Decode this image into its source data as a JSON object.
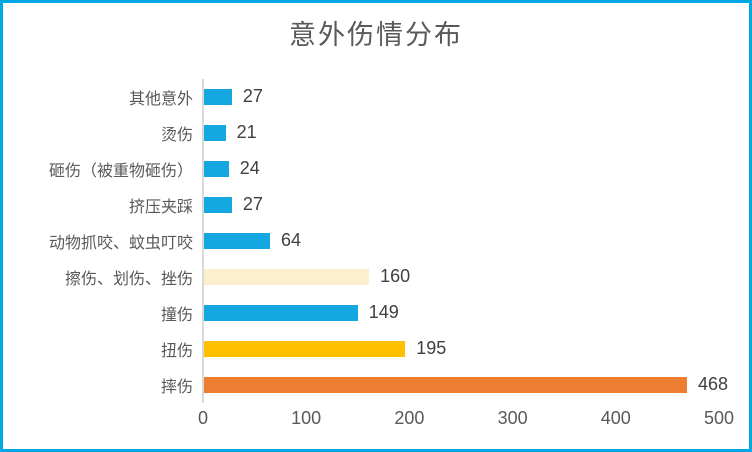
{
  "frame": {
    "border_color": "#00A7E3",
    "background_color": "#FFFFFF"
  },
  "chart_data": {
    "type": "bar",
    "orientation": "horizontal",
    "title": "意外伤情分布",
    "categories": [
      "其他意外",
      "烫伤",
      "砸伤（被重物砸伤）",
      "挤压夹踩",
      "动物抓咬、蚊虫叮咬",
      "擦伤、划伤、挫伤",
      "撞伤",
      "扭伤",
      "摔伤"
    ],
    "values": [
      27,
      21,
      24,
      27,
      64,
      160,
      149,
      195,
      468
    ],
    "bar_colors": [
      "#14A7E0",
      "#14A7E0",
      "#14A7E0",
      "#14A7E0",
      "#14A7E0",
      "#FCEFCD",
      "#14A7E0",
      "#FFC000",
      "#ED7D31"
    ],
    "xlabel": "",
    "ylabel": "",
    "xlim": [
      0,
      500
    ],
    "xticks": [
      0,
      100,
      200,
      300,
      400,
      500
    ],
    "grid": false,
    "legend": "none",
    "value_labels": "outside-end"
  },
  "style_colors": {
    "title_text": "#595959",
    "category_text": "#595959",
    "value_text": "#404040",
    "tick_text": "#595959",
    "axis_line": "#D9D9D9"
  }
}
